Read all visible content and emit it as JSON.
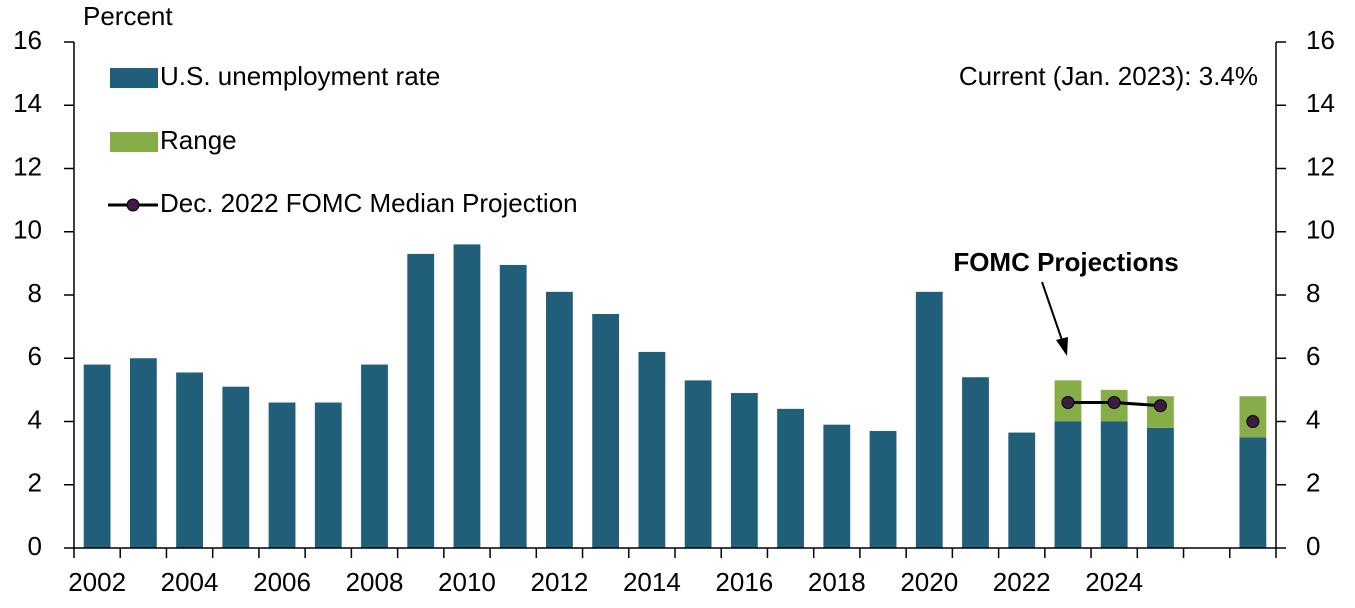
{
  "chart_data": {
    "type": "bar",
    "stacked": true,
    "y_axis_label": "Percent",
    "categories": [
      "2002",
      null,
      "2004",
      null,
      "2006",
      null,
      "2008",
      null,
      "2010",
      null,
      "2012",
      null,
      "2014",
      null,
      "2016",
      null,
      "2018",
      null,
      "2020",
      null,
      "2022",
      null,
      "2024",
      null,
      null,
      null
    ],
    "series": [
      {
        "name": "U.S. unemployment rate",
        "color": "#215e7a",
        "values": [
          5.8,
          6.0,
          5.55,
          5.1,
          4.6,
          4.6,
          5.8,
          9.3,
          9.6,
          8.95,
          8.1,
          7.4,
          6.2,
          5.3,
          4.9,
          4.4,
          3.9,
          3.7,
          8.1,
          5.4,
          3.65,
          4.0,
          4.0,
          3.8,
          null,
          3.5
        ]
      },
      {
        "name": "Range",
        "color": "#86ad47",
        "values": [
          null,
          null,
          null,
          null,
          null,
          null,
          null,
          null,
          null,
          null,
          null,
          null,
          null,
          null,
          null,
          null,
          null,
          null,
          null,
          null,
          null,
          1.3,
          1.0,
          1.0,
          null,
          1.3
        ]
      },
      {
        "name": "Dec. 2022 FOMC Median Projection",
        "type": "line",
        "color": "#000000",
        "marker_color": "#3b1d40",
        "values": [
          null,
          null,
          null,
          null,
          null,
          null,
          null,
          null,
          null,
          null,
          null,
          null,
          null,
          null,
          null,
          null,
          null,
          null,
          null,
          null,
          null,
          4.6,
          4.6,
          4.5,
          null,
          4.0
        ]
      }
    ],
    "ylim": [
      0,
      16
    ],
    "yticks": [
      0,
      2,
      4,
      6,
      8,
      10,
      12,
      14,
      16
    ],
    "y2lim": [
      0,
      16
    ],
    "y2ticks": [
      0,
      2,
      4,
      6,
      8,
      10,
      12,
      14,
      16
    ],
    "annotations": [
      {
        "text": "FOMC Projections",
        "color": "#000000"
      },
      {
        "text": "Current (Jan. 2023): 3.4%",
        "color": "#e8141c"
      }
    ],
    "legend": "upper left"
  }
}
